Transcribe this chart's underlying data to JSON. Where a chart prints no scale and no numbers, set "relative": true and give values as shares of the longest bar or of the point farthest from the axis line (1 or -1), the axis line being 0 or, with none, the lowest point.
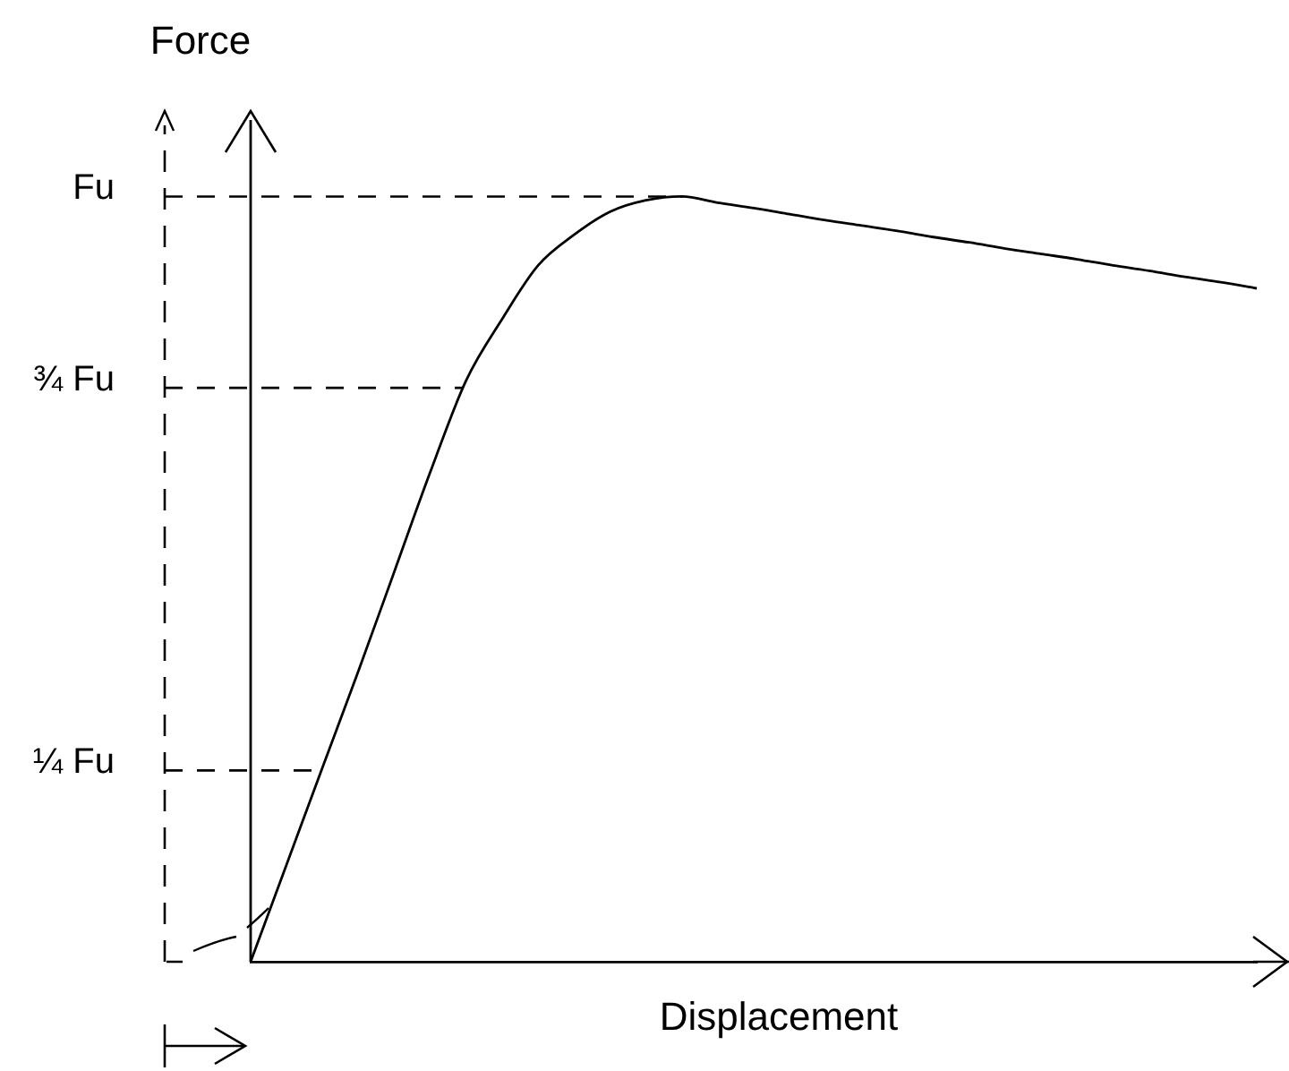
{
  "chart_data": {
    "type": "line",
    "ylabel": "Force",
    "xlabel": "Displacement",
    "categories": [
      null,
      null,
      null,
      null,
      null,
      null,
      null,
      null,
      null,
      null,
      null,
      null,
      null,
      null,
      null,
      null,
      null,
      null,
      null,
      null,
      null,
      null,
      null,
      null,
      null,
      null,
      null,
      null,
      null
    ],
    "series": [
      {
        "color": "#000000",
        "values": [
          0,
          0.127,
          0.254,
          0.38,
          0.51,
          0.64,
          0.76,
          0.84,
          0.91,
          0.95,
          0.98,
          0.995,
          1.0,
          0.992,
          0.985,
          0.977,
          0.969,
          0.962,
          0.955,
          0.947,
          0.94,
          0.932,
          0.925,
          0.918,
          0.91,
          0.903,
          0.895,
          0.888,
          0.88
        ]
      }
    ],
    "relative": true,
    "ref_lines": [
      {
        "axis": "y",
        "value": 0.25,
        "label": "¼ Fu",
        "line_style": "dashed"
      },
      {
        "axis": "y",
        "value": 0.75,
        "label": "¾ Fu",
        "line_style": "dashed"
      },
      {
        "axis": "y",
        "value": 1,
        "label": "Fu",
        "line_style": "dashed"
      }
    ],
    "grid": false
  }
}
